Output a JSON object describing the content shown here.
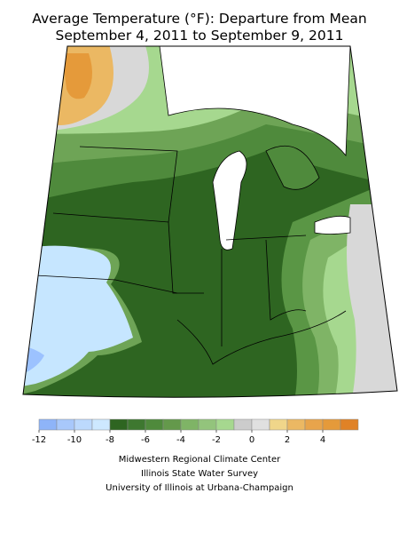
{
  "title": [
    "Average Temperature (°F): Departure from Mean",
    "September 4, 2011 to September 9, 2011"
  ],
  "legend": {
    "bins": [
      -12,
      -11,
      -10,
      -9,
      -8,
      -7,
      -6,
      -5,
      -4,
      -3,
      -2,
      -1,
      0,
      1,
      2,
      3,
      4,
      5,
      6
    ],
    "colors": [
      "#8eb4f8",
      "#a8c8fb",
      "#bcd9fd",
      "#cde8ff",
      "#2e6521",
      "#3e7830",
      "#4f8a3c",
      "#64994b",
      "#7fb466",
      "#93c47c",
      "#a6d88f",
      "#cccccc",
      "#e0e0e0",
      "#f0d68a",
      "#ebb863",
      "#e8a44b",
      "#e59a3a",
      "#e08226"
    ],
    "ticks": [
      -12,
      -10,
      -8,
      -6,
      -4,
      -2,
      0,
      2,
      4
    ]
  },
  "credits": [
    "Midwestern Regional Climate Center",
    "Illinois State Water Survey",
    "University of Illinois at Urbana-Champaign"
  ]
}
